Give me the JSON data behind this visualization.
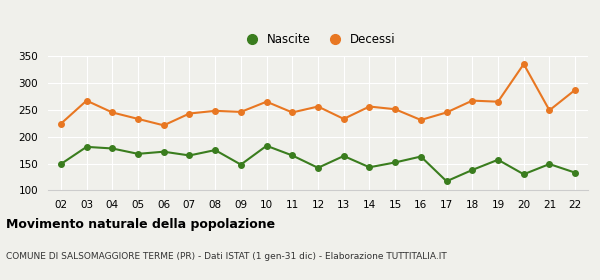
{
  "years": [
    2,
    3,
    4,
    5,
    6,
    7,
    8,
    9,
    10,
    11,
    12,
    13,
    14,
    15,
    16,
    17,
    18,
    19,
    20,
    21,
    22
  ],
  "nascite": [
    149,
    181,
    178,
    168,
    172,
    165,
    175,
    148,
    183,
    165,
    142,
    164,
    143,
    152,
    163,
    117,
    138,
    157,
    130,
    149,
    133
  ],
  "decessi": [
    224,
    267,
    245,
    233,
    221,
    243,
    248,
    246,
    265,
    245,
    256,
    233,
    256,
    251,
    231,
    245,
    267,
    265,
    335,
    249,
    287
  ],
  "nascite_color": "#3a7d1e",
  "decessi_color": "#e87722",
  "background_color": "#f0f0eb",
  "grid_color": "#ffffff",
  "ylim": [
    100,
    350
  ],
  "yticks": [
    100,
    150,
    200,
    250,
    300,
    350
  ],
  "title": "Movimento naturale della popolazione",
  "subtitle": "COMUNE DI SALSOMAGGIORE TERME (PR) - Dati ISTAT (1 gen-31 dic) - Elaborazione TUTTITALIA.IT",
  "legend_nascite": "Nascite",
  "legend_decessi": "Decessi",
  "marker_size": 4,
  "linewidth": 1.5,
  "title_fontsize": 9,
  "subtitle_fontsize": 6.5,
  "tick_fontsize": 7.5,
  "legend_fontsize": 8.5
}
